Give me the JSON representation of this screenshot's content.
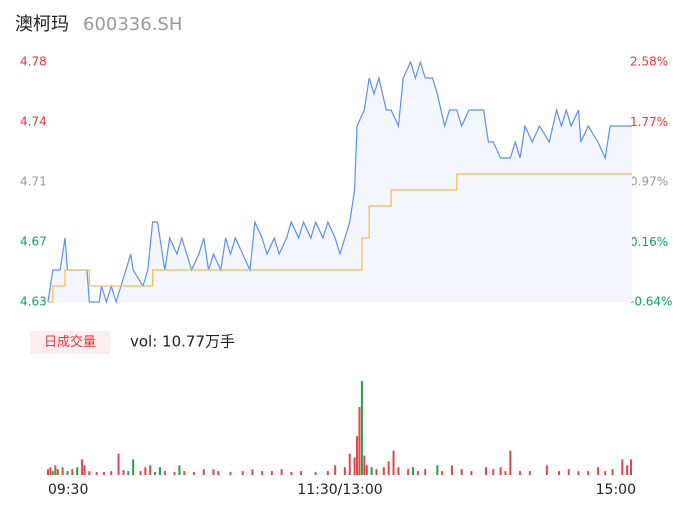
{
  "chart_data": [
    {
      "type": "line",
      "title": "澳柯玛",
      "subtitle": "600336.SH",
      "xlim": [
        0,
        240
      ],
      "ylim": [
        4.63,
        4.78
      ],
      "y2lim": [
        -0.64,
        2.58
      ],
      "yticks": [
        4.63,
        {
          "value": 4.6675,
          "label": "4.67"
        },
        {
          "value": 4.705,
          "label": "4.71"
        },
        {
          "value": 4.7425,
          "label": "4.74"
        },
        4.78
      ],
      "ytick_colors": [
        "#17a05d",
        "#17a05d",
        "#999999",
        "#e8383d",
        "#e8383d"
      ],
      "y2ticks": [
        {
          "value": -0.64,
          "label": "-0.64%"
        },
        {
          "value": 0.16,
          "label": "0.16%"
        },
        {
          "value": 0.97,
          "label": "0.97%"
        },
        {
          "value": 1.77,
          "label": "1.77%"
        },
        {
          "value": 2.58,
          "label": "2.58%"
        }
      ],
      "y2tick_colors": [
        "#17a05d",
        "#17a05d",
        "#999999",
        "#e8383d",
        "#e8383d"
      ],
      "area_color": "#f4f6fd",
      "series": [
        {
          "color": "#5b8ff9",
          "x": [
            0,
            2,
            5,
            7,
            8,
            16,
            17,
            21,
            22,
            24,
            26,
            28,
            30,
            32,
            34,
            35,
            39,
            41,
            43,
            45,
            47,
            48,
            50,
            53,
            55,
            57,
            59,
            62,
            64,
            66,
            68,
            71,
            73,
            75,
            77,
            80,
            83,
            85,
            88,
            90,
            93,
            95,
            98,
            100,
            103,
            105,
            108,
            110,
            113,
            115,
            118,
            120,
            122,
            124,
            126,
            127,
            130,
            132,
            134,
            136,
            139,
            141,
            144,
            146,
            149,
            151,
            153,
            155,
            158,
            160,
            163,
            165,
            168,
            170,
            173,
            177,
            179,
            181,
            183,
            186,
            190,
            192,
            194,
            196,
            199,
            202,
            206,
            209,
            211,
            213,
            215,
            218,
            219,
            222,
            226,
            229,
            231,
            240
          ],
          "values": [
            4.63,
            4.65,
            4.65,
            4.67,
            4.65,
            4.65,
            4.63,
            4.63,
            4.64,
            4.63,
            4.64,
            4.63,
            4.64,
            4.65,
            4.66,
            4.65,
            4.64,
            4.65,
            4.68,
            4.68,
            4.66,
            4.65,
            4.67,
            4.66,
            4.67,
            4.66,
            4.65,
            4.66,
            4.67,
            4.65,
            4.66,
            4.65,
            4.67,
            4.66,
            4.67,
            4.66,
            4.65,
            4.68,
            4.67,
            4.66,
            4.67,
            4.66,
            4.67,
            4.68,
            4.67,
            4.68,
            4.67,
            4.68,
            4.67,
            4.68,
            4.67,
            4.66,
            4.67,
            4.68,
            4.7,
            4.74,
            4.75,
            4.77,
            4.76,
            4.77,
            4.75,
            4.75,
            4.74,
            4.77,
            4.78,
            4.77,
            4.78,
            4.77,
            4.77,
            4.76,
            4.74,
            4.75,
            4.75,
            4.74,
            4.75,
            4.75,
            4.75,
            4.73,
            4.73,
            4.72,
            4.72,
            4.73,
            4.72,
            4.74,
            4.73,
            4.74,
            4.73,
            4.75,
            4.74,
            4.75,
            4.74,
            4.75,
            4.73,
            4.74,
            4.73,
            4.72,
            4.74,
            4.74
          ]
        },
        {
          "color": "#f6bd4f",
          "step": true,
          "x": [
            0,
            2,
            7,
            17,
            43,
            129,
            132,
            141,
            168,
            240
          ],
          "values": [
            4.63,
            4.64,
            4.65,
            4.64,
            4.65,
            4.67,
            4.69,
            4.7,
            4.71,
            4.71
          ]
        }
      ]
    },
    {
      "type": "bar",
      "legend_label": "日成交量",
      "annotation": "vol: 10.77万手",
      "xlim": [
        0,
        240
      ],
      "ylim": [
        0,
        100
      ],
      "xticks": [
        {
          "value": 0,
          "label": "09:30"
        },
        {
          "value": 120,
          "label": "11:30/13:00"
        },
        {
          "value": 240,
          "label": "15:00"
        }
      ],
      "x": [
        0,
        1,
        2,
        3,
        4,
        6,
        8,
        10,
        12,
        14,
        15,
        17,
        20,
        23,
        26,
        29,
        31,
        33,
        35,
        38,
        40,
        42,
        44,
        46,
        48,
        52,
        54,
        56,
        60,
        64,
        68,
        70,
        75,
        80,
        84,
        88,
        92,
        96,
        100,
        104,
        110,
        115,
        118,
        122,
        124,
        126,
        127,
        128,
        129,
        130,
        131,
        133,
        135,
        138,
        140,
        142,
        144,
        148,
        150,
        152,
        155,
        160,
        162,
        166,
        170,
        174,
        180,
        183,
        186,
        188,
        190,
        194,
        198,
        205,
        210,
        214,
        218,
        222,
        226,
        229,
        232,
        236,
        238,
        240
      ],
      "values": [
        6,
        8,
        4,
        10,
        6,
        8,
        4,
        6,
        8,
        16,
        10,
        4,
        3,
        3,
        4,
        22,
        5,
        4,
        16,
        4,
        8,
        10,
        3,
        8,
        4,
        3,
        10,
        4,
        3,
        6,
        6,
        4,
        3,
        4,
        6,
        4,
        4,
        6,
        3,
        4,
        3,
        4,
        10,
        8,
        22,
        18,
        40,
        70,
        97,
        20,
        10,
        8,
        6,
        8,
        14,
        25,
        8,
        6,
        8,
        4,
        6,
        10,
        4,
        10,
        6,
        4,
        8,
        6,
        8,
        4,
        25,
        4,
        4,
        10,
        4,
        6,
        4,
        4,
        8,
        4,
        6,
        16,
        10,
        16
      ],
      "colors": [
        "#e64545",
        "#e64545",
        "#23a04a",
        "#e64545",
        "#23a04a",
        "#e64545",
        "#23a04a",
        "#e64545",
        "#23a04a",
        "#e64545",
        "#e64545",
        "#e64545",
        "#e64545",
        "#e64545",
        "#e64545",
        "#e64545",
        "#e64545",
        "#23a04a",
        "#23a04a",
        "#e64545",
        "#e64545",
        "#e64545",
        "#23a04a",
        "#23a04a",
        "#e64545",
        "#e64545",
        "#23a04a",
        "#e64545",
        "#e64545",
        "#e64545",
        "#e64545",
        "#e64545",
        "#e64545",
        "#e64545",
        "#e64545",
        "#e64545",
        "#e64545",
        "#e64545",
        "#e64545",
        "#e64545",
        "#e64545",
        "#e64545",
        "#e64545",
        "#e64545",
        "#e64545",
        "#e64545",
        "#e64545",
        "#e64545",
        "#23a04a",
        "#e64545",
        "#e64545",
        "#23a04a",
        "#e64545",
        "#e64545",
        "#e64545",
        "#e64545",
        "#e64545",
        "#e64545",
        "#23a04a",
        "#e64545",
        "#e64545",
        "#23a04a",
        "#e64545",
        "#e64545",
        "#e64545",
        "#e64545",
        "#e64545",
        "#e64545",
        "#e64545",
        "#e64545",
        "#e64545",
        "#e64545",
        "#e64545",
        "#e64545",
        "#e64545",
        "#e64545",
        "#e64545",
        "#e64545",
        "#e64545",
        "#e64545",
        "#e64545",
        "#e64545",
        "#e64545",
        "#e64545"
      ]
    }
  ]
}
